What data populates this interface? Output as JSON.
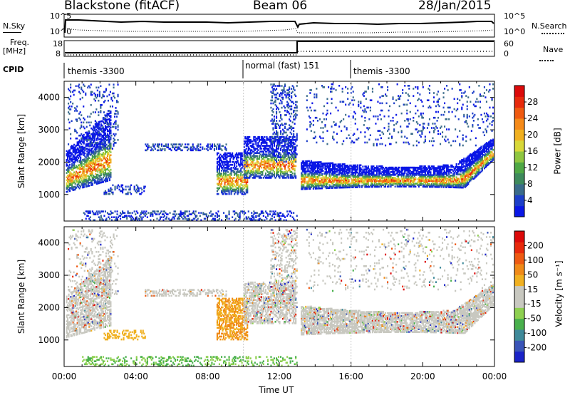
{
  "header": {
    "station": "Blackstone (fitACF)",
    "beam": "Beam 06",
    "date": "28/Jan/2015"
  },
  "top_panels": {
    "nsky_label": "N.Sky",
    "nsearch_label": "N.Search",
    "nsky_ticks": [
      "10^5",
      "10^0"
    ],
    "nsearch_ticks": [
      "10^5",
      "10^0"
    ],
    "freq_label_1": "Freq.",
    "freq_label_2": "[MHz]",
    "freq_ticks": [
      "18",
      "8"
    ],
    "nave_ticks": [
      "60",
      "0"
    ],
    "nave_label": "Nave",
    "cpid_label": "CPID",
    "cpid_segments": [
      {
        "label": "themis -3300",
        "start_hr": 0,
        "end_hr": 10
      },
      {
        "label": "normal (fast) 151",
        "start_hr": 10,
        "end_hr": 16
      },
      {
        "label": "themis -3300",
        "start_hr": 16,
        "end_hr": 24
      }
    ]
  },
  "chart_data": [
    {
      "type": "heatmap",
      "title": "",
      "xlabel": "Time UT",
      "ylabel": "Slant Range [km]",
      "xlim": [
        0,
        24
      ],
      "ylim": [
        180,
        4500
      ],
      "x_ticks": [
        "00:00",
        "04:00",
        "08:00",
        "12:00",
        "16:00",
        "20:00",
        "00:00"
      ],
      "y_ticks": [
        1000,
        2000,
        3000,
        4000
      ],
      "colorbar": {
        "label": "Power [dB]",
        "ticks": [
          "4",
          "8",
          "12",
          "16",
          "20",
          "24",
          "28"
        ],
        "colors": [
          "#0a17e6",
          "#1d3fc9",
          "#3a6b8a",
          "#3e8a5c",
          "#4fa845",
          "#8fc640",
          "#d8d838",
          "#f0b020",
          "#f58a18",
          "#f05a10",
          "#e82a0c",
          "#dc0a0a"
        ]
      }
    },
    {
      "type": "heatmap",
      "title": "",
      "xlabel": "Time UT",
      "ylabel": "Slant Range [km]",
      "xlim": [
        0,
        24
      ],
      "ylim": [
        180,
        4500
      ],
      "x_ticks": [
        "00:00",
        "04:00",
        "08:00",
        "12:00",
        "16:00",
        "20:00",
        "00:00"
      ],
      "y_ticks": [
        1000,
        2000,
        3000,
        4000
      ],
      "colorbar": {
        "label": "Velocity [m s⁻¹]",
        "ticks": [
          "200",
          "100",
          "50",
          "15",
          "-15",
          "-50",
          "-100",
          "-200"
        ],
        "colors": [
          "#1a23c8",
          "#3a55b8",
          "#3f8a9a",
          "#49b04c",
          "#8ed050",
          "#c8c8c0",
          "#c8c8c0",
          "#f0b020",
          "#f08a18",
          "#ee5a12",
          "#e82a0c",
          "#dc0a0a"
        ]
      }
    }
  ]
}
